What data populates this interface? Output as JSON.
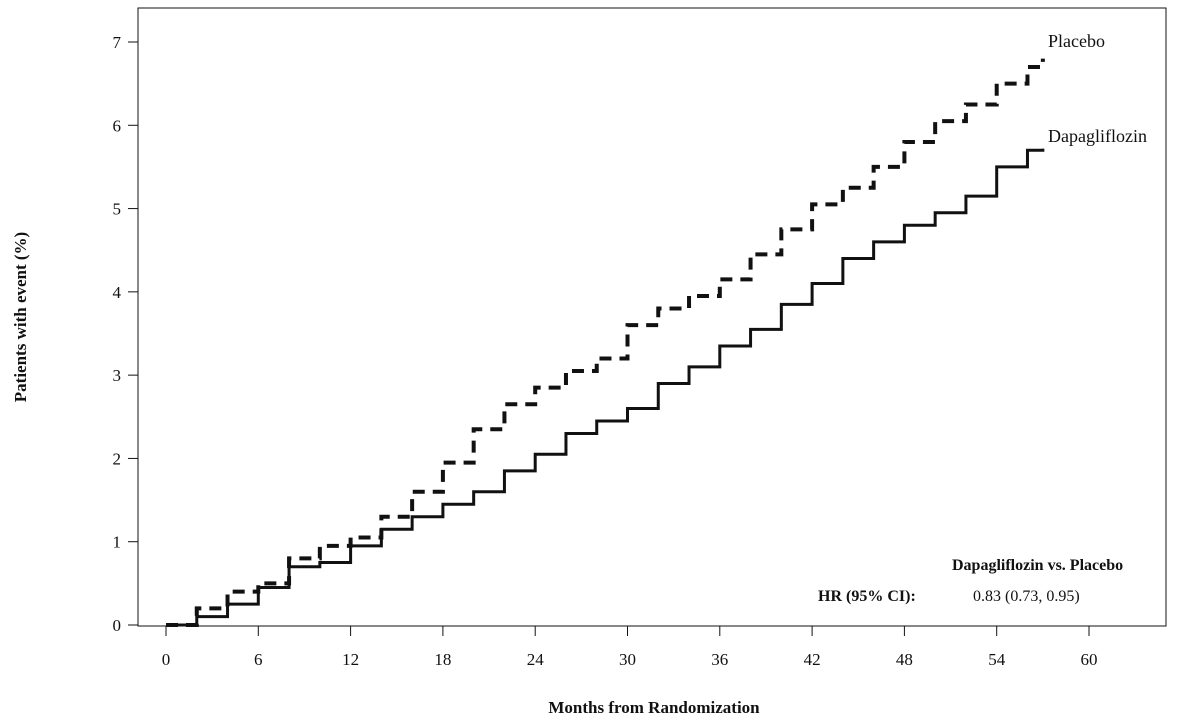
{
  "chart_data": {
    "type": "line",
    "title": "",
    "xlabel": "Months from Randomization",
    "ylabel": "Patients with event (%)",
    "xlim": [
      0,
      60
    ],
    "ylim": [
      0,
      7
    ],
    "xticks": [
      "0",
      "6",
      "12",
      "18",
      "24",
      "30",
      "36",
      "42",
      "48",
      "54",
      "60"
    ],
    "yticks": [
      "0",
      "1",
      "2",
      "3",
      "4",
      "5",
      "6",
      "7"
    ],
    "grid": false,
    "legend": "none",
    "series": [
      {
        "name": "Placebo",
        "style": "dashed",
        "color": "#111111",
        "x": [
          0,
          2,
          4,
          6,
          8,
          10,
          12,
          14,
          16,
          18,
          20,
          22,
          24,
          26,
          28,
          30,
          32,
          34,
          36,
          38,
          40,
          42,
          44,
          46,
          48,
          50,
          52,
          54,
          56,
          57
        ],
        "y": [
          0,
          0.2,
          0.4,
          0.5,
          0.8,
          0.95,
          1.05,
          1.3,
          1.6,
          1.95,
          2.35,
          2.65,
          2.85,
          3.05,
          3.2,
          3.6,
          3.8,
          3.95,
          4.15,
          4.45,
          4.75,
          5.05,
          5.25,
          5.5,
          5.8,
          6.05,
          6.25,
          6.5,
          6.7,
          6.8
        ]
      },
      {
        "name": "Dapagliflozin",
        "style": "solid",
        "color": "#111111",
        "x": [
          0,
          2,
          4,
          6,
          8,
          10,
          12,
          14,
          16,
          18,
          20,
          22,
          24,
          26,
          28,
          30,
          32,
          34,
          36,
          38,
          40,
          42,
          44,
          46,
          48,
          50,
          52,
          54,
          56,
          57
        ],
        "y": [
          0,
          0.1,
          0.25,
          0.45,
          0.7,
          0.75,
          0.95,
          1.15,
          1.3,
          1.45,
          1.6,
          1.85,
          2.05,
          2.3,
          2.45,
          2.6,
          2.9,
          3.1,
          3.35,
          3.55,
          3.85,
          4.1,
          4.4,
          4.6,
          4.8,
          4.95,
          5.15,
          5.5,
          5.7,
          5.72
        ]
      }
    ],
    "annotations": {
      "comparison": "Dapagliflozin vs. Placebo",
      "hr_label": "HR (95% CI):",
      "hr_value": "0.83 (0.73, 0.95)"
    }
  }
}
